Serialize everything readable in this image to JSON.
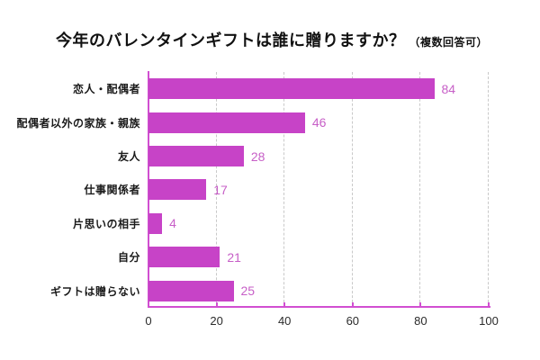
{
  "title": {
    "main": "今年のバレンタインギフトは誰に贈りますか？",
    "note": "（複数回答可）"
  },
  "chart_data": {
    "type": "bar",
    "orientation": "horizontal",
    "title": "今年のバレンタインギフトは誰に贈りますか？",
    "title_note": "（複数回答可）",
    "categories": [
      "恋人・配偶者",
      "配偶者以外の家族・親族",
      "友人",
      "仕事関係者",
      "片思いの相手",
      "自分",
      "ギフトは贈らない"
    ],
    "values": [
      84,
      46,
      28,
      17,
      4,
      21,
      25
    ],
    "xlim": [
      0,
      100
    ],
    "x_ticks": [
      "0",
      "20",
      "40",
      "60",
      "80",
      "100"
    ],
    "grid": "vertical-dashed",
    "legend": "none",
    "colors": {
      "bar": "#c743c7",
      "axis": "#d14fd1",
      "value_label": "#c75fc7",
      "category_label": "#1a1a1a",
      "tick_label": "#2b2b2b",
      "gridline": "#c9c9c9",
      "background": "#ffffff",
      "title": "#111111"
    }
  }
}
